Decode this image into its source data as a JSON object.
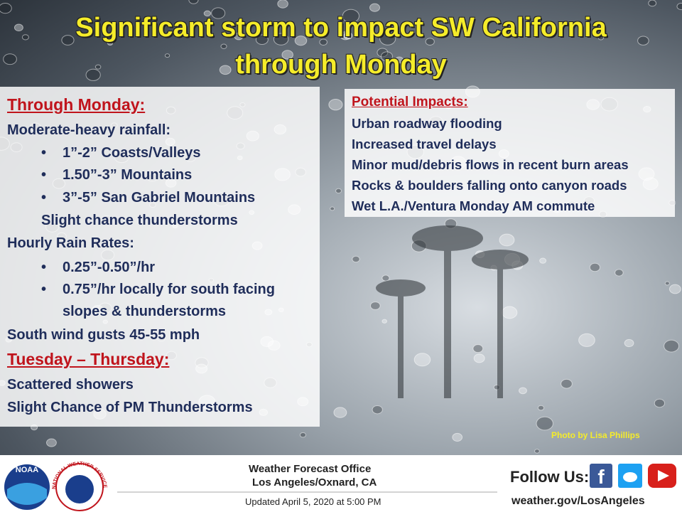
{
  "header": {
    "title_lines": [
      "Significant storm to impact SW California",
      "through Monday"
    ]
  },
  "left_panel": {
    "section1_heading": "Through Monday:",
    "rainfall_label": "Moderate-heavy rainfall:",
    "rainfall_items": [
      "1”-2” Coasts/Valleys",
      "1.50”-3” Mountains",
      "3”-5” San Gabriel Mountains"
    ],
    "thunder_note": "Slight chance thunderstorms",
    "rates_label": "Hourly Rain Rates:",
    "rates_items": [
      "0.25”-0.50”/hr",
      "0.75”/hr locally for south facing slopes & thunderstorms"
    ],
    "wind": "South wind gusts 45-55 mph",
    "section2_heading": "Tuesday – Thursday:",
    "section2_lines": [
      "Scattered showers",
      "Slight Chance of PM Thunderstorms"
    ]
  },
  "right_panel": {
    "heading": "Potential Impacts:",
    "items": [
      "Urban roadway flooding",
      "Increased travel delays",
      "Minor mud/debris flows in recent burn areas",
      "Rocks &  boulders falling onto canyon roads",
      "Wet L.A./Ventura Monday AM commute"
    ]
  },
  "photo_credit": "Photo by Lisa Phillips",
  "footer": {
    "logos": {
      "noaa": "NOAA",
      "nws": "NATIONAL WEATHER SERVICE"
    },
    "office_lines": [
      "Weather Forecast Office",
      "Los Angeles/Oxnard, CA"
    ],
    "updated": "Updated April 5, 2020 at 5:00 PM",
    "follow": "Follow Us:",
    "website": "weather.gov/LosAngeles"
  }
}
